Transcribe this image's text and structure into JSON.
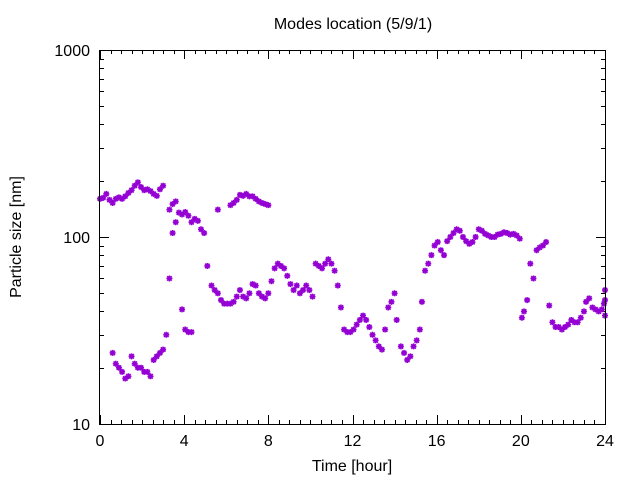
{
  "chart_data": {
    "type": "scatter",
    "title": "Modes location (5/9/1)",
    "xlabel": "Time [hour]",
    "ylabel": "Particle size [nm]",
    "xlim": [
      0,
      24
    ],
    "ylim": [
      10,
      1000
    ],
    "yscale": "log",
    "grid": false,
    "legend": "none",
    "marker": "asterisk",
    "color": "#9400d3",
    "xticks": [
      0,
      4,
      8,
      12,
      16,
      20,
      24
    ],
    "xtick_labels": [
      "0",
      "4",
      "8",
      "12",
      "16",
      "20",
      "24"
    ],
    "yticks": [
      10,
      100,
      1000
    ],
    "ytick_labels": [
      "10",
      "100",
      "1000"
    ],
    "series": [
      {
        "points": [
          [
            0.0,
            160
          ],
          [
            0.15,
            162
          ],
          [
            0.3,
            170
          ],
          [
            0.45,
            158
          ],
          [
            0.6,
            152
          ],
          [
            0.75,
            160
          ],
          [
            0.9,
            163
          ],
          [
            1.05,
            160
          ],
          [
            1.2,
            165
          ],
          [
            1.35,
            172
          ],
          [
            1.5,
            178
          ],
          [
            1.65,
            188
          ],
          [
            1.8,
            196
          ],
          [
            1.95,
            185
          ],
          [
            2.1,
            178
          ],
          [
            2.25,
            180
          ],
          [
            2.4,
            176
          ],
          [
            2.55,
            170
          ],
          [
            2.7,
            166
          ],
          [
            2.85,
            180
          ],
          [
            3.0,
            188
          ],
          [
            3.3,
            140
          ],
          [
            3.45,
            150
          ],
          [
            3.6,
            155
          ],
          [
            3.75,
            135
          ],
          [
            3.9,
            132
          ],
          [
            4.05,
            136
          ],
          [
            4.2,
            130
          ],
          [
            4.35,
            120
          ],
          [
            4.5,
            125
          ],
          [
            4.65,
            122
          ],
          [
            4.8,
            110
          ],
          [
            4.95,
            105
          ],
          [
            5.6,
            140
          ],
          [
            6.2,
            148
          ],
          [
            6.35,
            152
          ],
          [
            6.5,
            158
          ],
          [
            6.65,
            168
          ],
          [
            6.8,
            166
          ],
          [
            6.95,
            170
          ],
          [
            7.1,
            165
          ],
          [
            7.25,
            165
          ],
          [
            7.4,
            160
          ],
          [
            7.55,
            155
          ],
          [
            7.7,
            152
          ],
          [
            7.85,
            150
          ],
          [
            8.0,
            148
          ],
          [
            0.6,
            24
          ],
          [
            0.75,
            21
          ],
          [
            0.9,
            20
          ],
          [
            1.05,
            19
          ],
          [
            1.2,
            17.5
          ],
          [
            1.35,
            18
          ],
          [
            1.5,
            23
          ],
          [
            1.65,
            21
          ],
          [
            1.8,
            20
          ],
          [
            1.95,
            20
          ],
          [
            2.1,
            19
          ],
          [
            2.25,
            19
          ],
          [
            2.4,
            18
          ],
          [
            2.55,
            22
          ],
          [
            2.7,
            23
          ],
          [
            2.85,
            24
          ],
          [
            3.0,
            25
          ],
          [
            3.15,
            30
          ],
          [
            3.3,
            60
          ],
          [
            3.45,
            105
          ],
          [
            3.6,
            120
          ],
          [
            3.9,
            41
          ],
          [
            4.05,
            32
          ],
          [
            4.2,
            31
          ],
          [
            4.35,
            31
          ],
          [
            5.1,
            70
          ],
          [
            5.3,
            55
          ],
          [
            5.45,
            52
          ],
          [
            5.6,
            50
          ],
          [
            5.75,
            46
          ],
          [
            5.9,
            44
          ],
          [
            6.05,
            44
          ],
          [
            6.2,
            44
          ],
          [
            6.35,
            45
          ],
          [
            6.5,
            48
          ],
          [
            6.65,
            52
          ],
          [
            6.8,
            48
          ],
          [
            6.95,
            47
          ],
          [
            7.1,
            50
          ],
          [
            7.25,
            56
          ],
          [
            7.4,
            55
          ],
          [
            7.55,
            50
          ],
          [
            7.7,
            48
          ],
          [
            7.85,
            47
          ],
          [
            8.0,
            50
          ],
          [
            8.15,
            58
          ],
          [
            8.3,
            68
          ],
          [
            8.45,
            72
          ],
          [
            8.6,
            70
          ],
          [
            8.75,
            68
          ],
          [
            8.9,
            62
          ],
          [
            9.05,
            56
          ],
          [
            9.2,
            52
          ],
          [
            9.35,
            55
          ],
          [
            9.5,
            50
          ],
          [
            9.65,
            52
          ],
          [
            9.8,
            55
          ],
          [
            9.95,
            52
          ],
          [
            10.1,
            48
          ],
          [
            10.25,
            72
          ],
          [
            10.4,
            70
          ],
          [
            10.55,
            68
          ],
          [
            10.7,
            72
          ],
          [
            10.85,
            76
          ],
          [
            11.0,
            72
          ],
          [
            11.15,
            66
          ],
          [
            11.3,
            55
          ],
          [
            11.45,
            42
          ],
          [
            11.6,
            32
          ],
          [
            11.75,
            31
          ],
          [
            11.9,
            31
          ],
          [
            12.05,
            32
          ],
          [
            12.2,
            34
          ],
          [
            12.35,
            36
          ],
          [
            12.5,
            38
          ],
          [
            12.65,
            36
          ],
          [
            12.8,
            33
          ],
          [
            12.95,
            30
          ],
          [
            13.1,
            28
          ],
          [
            13.25,
            26
          ],
          [
            13.4,
            25
          ],
          [
            13.55,
            32
          ],
          [
            13.7,
            42
          ],
          [
            13.85,
            45
          ],
          [
            14.0,
            50
          ],
          [
            14.1,
            36
          ],
          [
            14.3,
            26
          ],
          [
            14.45,
            24
          ],
          [
            14.6,
            22
          ],
          [
            14.75,
            23
          ],
          [
            14.9,
            26
          ],
          [
            15.05,
            28
          ],
          [
            15.2,
            32
          ],
          [
            15.3,
            45
          ],
          [
            15.45,
            66
          ],
          [
            15.6,
            72
          ],
          [
            15.75,
            80
          ],
          [
            15.9,
            90
          ],
          [
            16.05,
            94
          ],
          [
            16.2,
            85
          ],
          [
            16.35,
            80
          ],
          [
            16.5,
            95
          ],
          [
            16.65,
            100
          ],
          [
            16.8,
            105
          ],
          [
            16.95,
            110
          ],
          [
            17.1,
            108
          ],
          [
            17.25,
            100
          ],
          [
            17.4,
            95
          ],
          [
            17.55,
            92
          ],
          [
            17.7,
            94
          ],
          [
            17.85,
            100
          ],
          [
            18.0,
            110
          ],
          [
            18.15,
            108
          ],
          [
            18.3,
            104
          ],
          [
            18.45,
            102
          ],
          [
            18.6,
            100
          ],
          [
            18.75,
            100
          ],
          [
            18.9,
            103
          ],
          [
            19.05,
            104
          ],
          [
            19.2,
            106
          ],
          [
            19.35,
            105
          ],
          [
            19.5,
            103
          ],
          [
            19.65,
            104
          ],
          [
            19.8,
            102
          ],
          [
            19.95,
            98
          ],
          [
            20.05,
            37
          ],
          [
            20.15,
            40
          ],
          [
            20.3,
            46
          ],
          [
            20.45,
            72
          ],
          [
            20.6,
            60
          ],
          [
            20.75,
            85
          ],
          [
            20.9,
            88
          ],
          [
            21.05,
            90
          ],
          [
            21.2,
            94
          ],
          [
            21.35,
            43
          ],
          [
            21.5,
            35
          ],
          [
            21.65,
            33
          ],
          [
            21.8,
            33
          ],
          [
            21.95,
            32
          ],
          [
            22.1,
            33
          ],
          [
            22.25,
            34
          ],
          [
            22.4,
            36
          ],
          [
            22.55,
            35
          ],
          [
            22.7,
            35
          ],
          [
            22.85,
            37
          ],
          [
            23.0,
            40
          ],
          [
            23.1,
            45
          ],
          [
            23.25,
            47
          ],
          [
            23.4,
            42
          ],
          [
            23.55,
            41
          ],
          [
            23.7,
            40
          ],
          [
            23.85,
            41
          ],
          [
            23.95,
            44
          ],
          [
            24.0,
            52
          ],
          [
            24.0,
            46
          ],
          [
            24.0,
            38
          ]
        ]
      }
    ]
  }
}
